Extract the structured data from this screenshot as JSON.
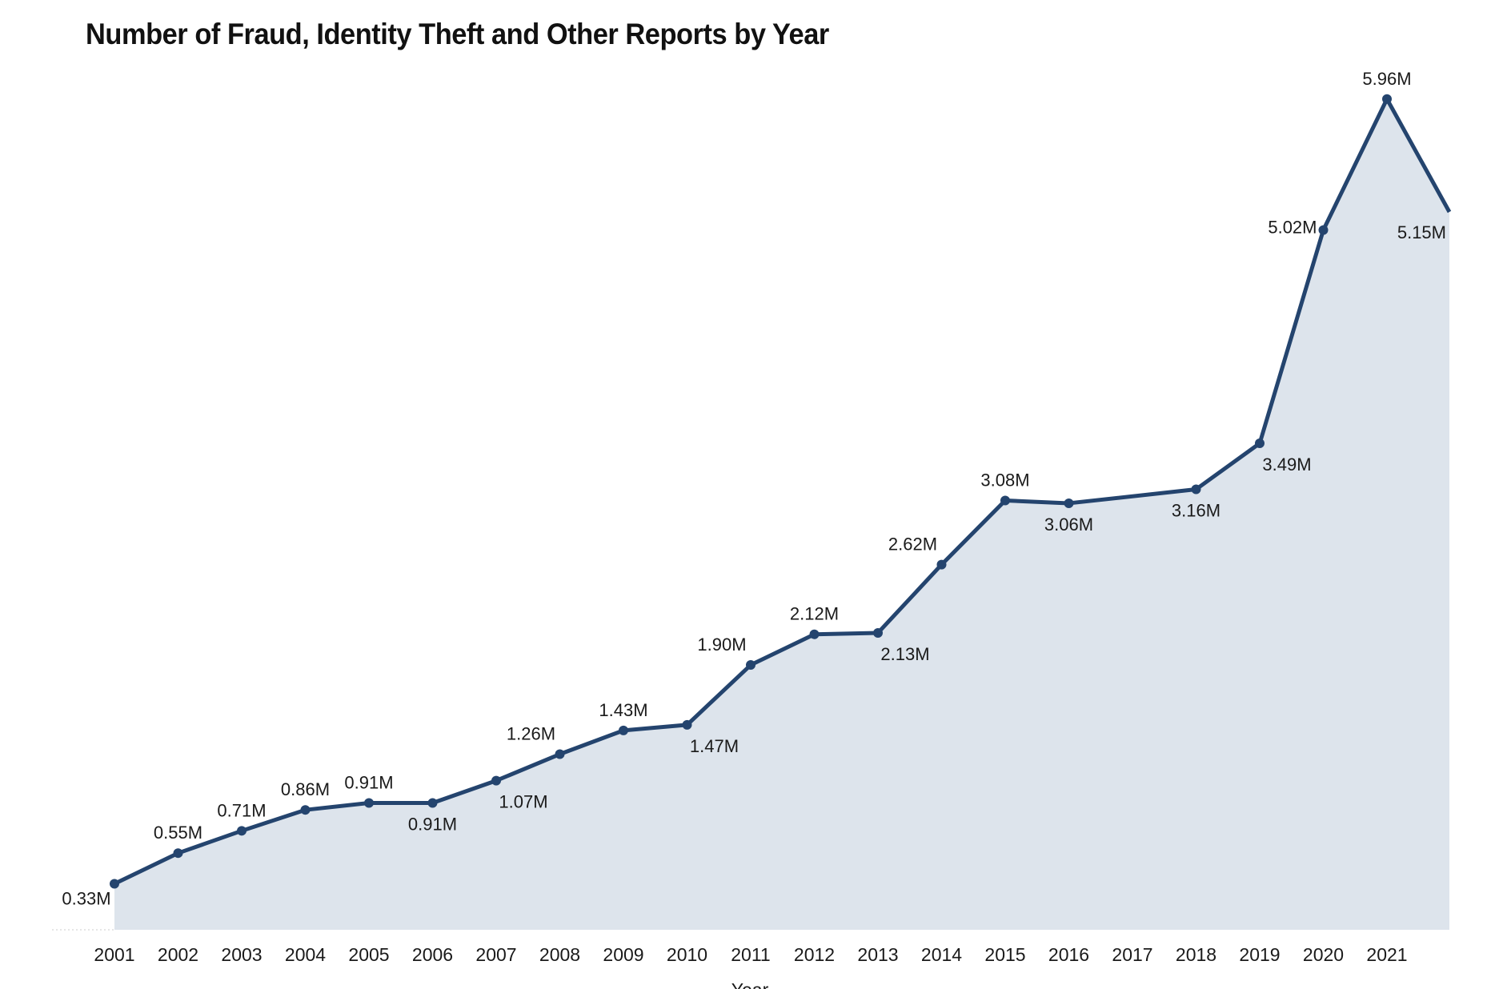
{
  "chart_data": {
    "type": "area",
    "title": "Number of Fraud, Identity Theft and Other Reports by Year",
    "xlabel": "Year",
    "ylabel": "",
    "ylim": [
      0,
      6.2
    ],
    "grid": false,
    "colors": {
      "line": "#24446e",
      "fill": "#dde4ec",
      "text": "#1a1a1a"
    },
    "categories": [
      "2001",
      "2002",
      "2003",
      "2004",
      "2005",
      "2006",
      "2007",
      "2008",
      "2009",
      "2010",
      "2011",
      "2012",
      "2013",
      "2014",
      "2015",
      "2016",
      "2017",
      "2018",
      "2019",
      "2020",
      "2021",
      ""
    ],
    "values": [
      0.33,
      0.55,
      0.71,
      0.86,
      0.91,
      0.91,
      1.07,
      1.26,
      1.43,
      1.47,
      1.9,
      2.12,
      2.13,
      2.62,
      3.08,
      3.06,
      null,
      3.16,
      3.49,
      5.02,
      5.96,
      5.15
    ],
    "labels": [
      "0.33M",
      "0.55M",
      "0.71M",
      "0.86M",
      "0.91M",
      "0.91M",
      "1.07M",
      "1.26M",
      "1.43M",
      "1.47M",
      "1.90M",
      "2.12M",
      "2.13M",
      "2.62M",
      "3.08M",
      "3.06M",
      "",
      "3.16M",
      "3.49M",
      "5.02M",
      "5.96M",
      "5.15M"
    ],
    "label_positions": [
      "below-left",
      "above",
      "above",
      "above",
      "above",
      "below",
      "below-right",
      "above-left",
      "above",
      "below-right",
      "above-left",
      "above",
      "below-right",
      "above-left",
      "above",
      "below",
      "none",
      "below",
      "below-right",
      "left",
      "above",
      "right"
    ]
  }
}
